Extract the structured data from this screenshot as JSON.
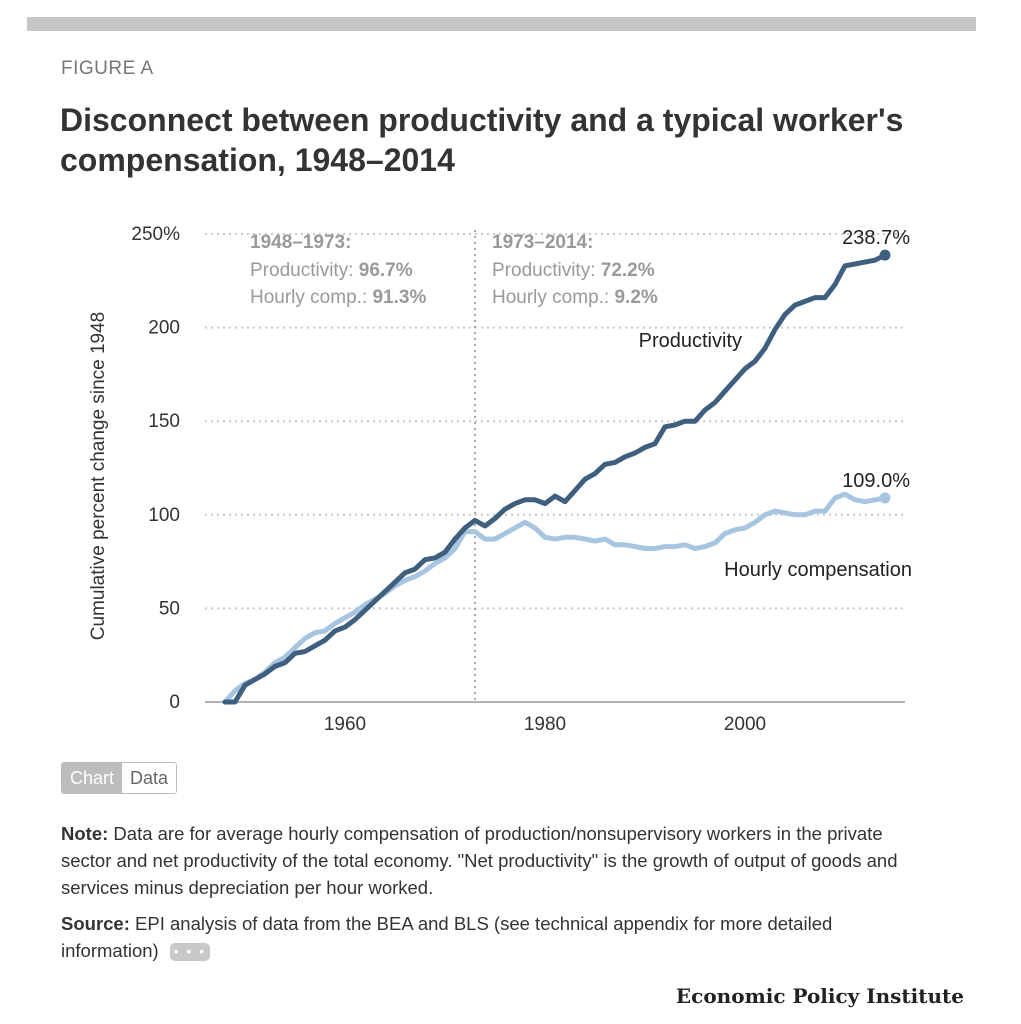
{
  "figure_label": "FIGURE A",
  "title": "Disconnect between productivity and a typical worker's compensation, 1948–2014",
  "tabs": {
    "chart": "Chart",
    "data": "Data"
  },
  "note": {
    "label": "Note:",
    "text": "Data are for average hourly compensation of production/nonsupervisory workers in the private sector and net productivity of the total economy. \"Net productivity\" is the growth of output of goods and services minus depreciation per hour worked."
  },
  "source": {
    "label": "Source:",
    "text": "EPI analysis of data from the BEA and BLS (see technical appendix for more detailed information)",
    "more": "• • •"
  },
  "brand": "Economic Policy Institute",
  "colors": {
    "productivity": "#3f5f7f",
    "compensation": "#a7c4e0",
    "grid": "#c8c8c8",
    "text": "#333333"
  },
  "chart_data": {
    "type": "line",
    "title": "Disconnect between productivity and a typical worker's compensation, 1948–2014",
    "ylabel": "Cumulative percent change since 1948",
    "xlabel": "",
    "xlim": [
      1946,
      2016
    ],
    "ylim": [
      0,
      250
    ],
    "x_ticks": [
      "1960",
      "1980",
      "2000"
    ],
    "x_tick_values": [
      1960,
      1980,
      2000
    ],
    "y_ticks": [
      "250%",
      "200",
      "150",
      "100",
      "50",
      "0"
    ],
    "y_tick_values": [
      250,
      200,
      150,
      100,
      50,
      0
    ],
    "grid": true,
    "divider_year": 1973,
    "annotations": [
      {
        "period": "1948–1973:",
        "prod_label": "Productivity:",
        "prod_value": "96.7%",
        "comp_label": "Hourly comp.:",
        "comp_value": "91.3%"
      },
      {
        "period": "1973–2014:",
        "prod_label": "Productivity:",
        "prod_value": "72.2%",
        "comp_label": "Hourly comp.:",
        "comp_value": "9.2%"
      }
    ],
    "series": [
      {
        "name": "Productivity",
        "end_label": "238.7%",
        "x": [
          1948,
          1949,
          1950,
          1951,
          1952,
          1953,
          1954,
          1955,
          1956,
          1957,
          1958,
          1959,
          1960,
          1961,
          1962,
          1963,
          1964,
          1965,
          1966,
          1967,
          1968,
          1969,
          1970,
          1971,
          1972,
          1973,
          1974,
          1975,
          1976,
          1977,
          1978,
          1979,
          1980,
          1981,
          1982,
          1983,
          1984,
          1985,
          1986,
          1987,
          1988,
          1989,
          1990,
          1991,
          1992,
          1993,
          1994,
          1995,
          1996,
          1997,
          1998,
          1999,
          2000,
          2001,
          2002,
          2003,
          2004,
          2005,
          2006,
          2007,
          2008,
          2009,
          2010,
          2011,
          2012,
          2013,
          2014
        ],
        "values": [
          0,
          0,
          9,
          12,
          15,
          19,
          21,
          26,
          27,
          30,
          33,
          38,
          40,
          44,
          49,
          54,
          59,
          64,
          69,
          71,
          76,
          77,
          80,
          87,
          93,
          97,
          94,
          98,
          103,
          106,
          108,
          108,
          106,
          110,
          107,
          113,
          119,
          122,
          127,
          128,
          131,
          133,
          136,
          138,
          147,
          148,
          150,
          150,
          156,
          160,
          166,
          172,
          178,
          182,
          189,
          199,
          207,
          212,
          214,
          216,
          216,
          223,
          233,
          234,
          235,
          236,
          238.7
        ]
      },
      {
        "name": "Hourly compensation",
        "end_label": "109.0%",
        "x": [
          1948,
          1949,
          1950,
          1951,
          1952,
          1953,
          1954,
          1955,
          1956,
          1957,
          1958,
          1959,
          1960,
          1961,
          1962,
          1963,
          1964,
          1965,
          1966,
          1967,
          1968,
          1969,
          1970,
          1971,
          1972,
          1973,
          1974,
          1975,
          1976,
          1977,
          1978,
          1979,
          1980,
          1981,
          1982,
          1983,
          1984,
          1985,
          1986,
          1987,
          1988,
          1989,
          1990,
          1991,
          1992,
          1993,
          1994,
          1995,
          1996,
          1997,
          1998,
          1999,
          2000,
          2001,
          2002,
          2003,
          2004,
          2005,
          2006,
          2007,
          2008,
          2009,
          2010,
          2011,
          2012,
          2013,
          2014
        ],
        "values": [
          0,
          6,
          10,
          12,
          16,
          21,
          24,
          29,
          34,
          37,
          38,
          42,
          45,
          48,
          52,
          55,
          58,
          62,
          65,
          67,
          70,
          74,
          77,
          82,
          91,
          91,
          87,
          87,
          90,
          93,
          96,
          93,
          88,
          87,
          88,
          88,
          87,
          86,
          87,
          84,
          84,
          83,
          82,
          82,
          83,
          83,
          84,
          82,
          83,
          85,
          90,
          92,
          93,
          96,
          100,
          102,
          101,
          100,
          100,
          102,
          102,
          109,
          111,
          108,
          107,
          108,
          109.0
        ]
      }
    ]
  }
}
